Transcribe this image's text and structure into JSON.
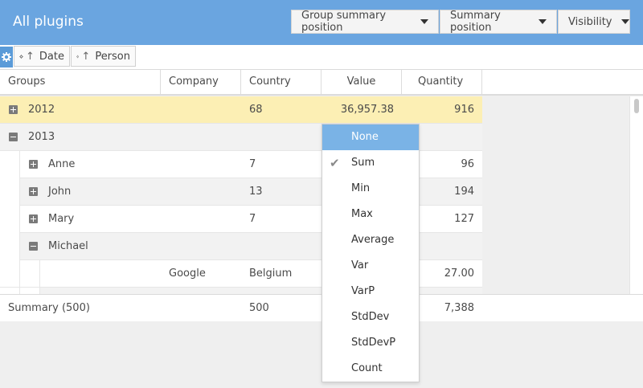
{
  "header": {
    "title": "All plugins",
    "buttons": [
      "Group summary position",
      "Summary position",
      "Visibility"
    ]
  },
  "groupbar": {
    "chips": [
      "Date",
      "Person"
    ]
  },
  "columns": [
    "Groups",
    "Company",
    "Country",
    "Value",
    "Quantity"
  ],
  "rows": [
    {
      "group": "2012",
      "country": "68",
      "value": "36,957.38",
      "quantity": "916"
    },
    {
      "group": "2013"
    },
    {
      "group": "Anne",
      "country": "7",
      "quantity": "96"
    },
    {
      "group": "John",
      "country": "13",
      "quantity": "194"
    },
    {
      "group": "Mary",
      "country": "7",
      "quantity": "127"
    },
    {
      "group": "Michael"
    },
    {
      "company": "Google",
      "country": "Belgium",
      "quantity": "27.00"
    }
  ],
  "summary": {
    "label": "Summary (500)",
    "country": "500",
    "quantity": "7,388"
  },
  "dropdown": {
    "items": [
      "None",
      "Sum",
      "Min",
      "Max",
      "Average",
      "Var",
      "VarP",
      "StdDev",
      "StdDevP",
      "Count"
    ],
    "highlighted": "None",
    "checked": "Sum"
  },
  "colors": {
    "header": "#6aa5e0",
    "highlight_row": "#fcefb4",
    "dropdown_selected": "#7ab3e6"
  }
}
